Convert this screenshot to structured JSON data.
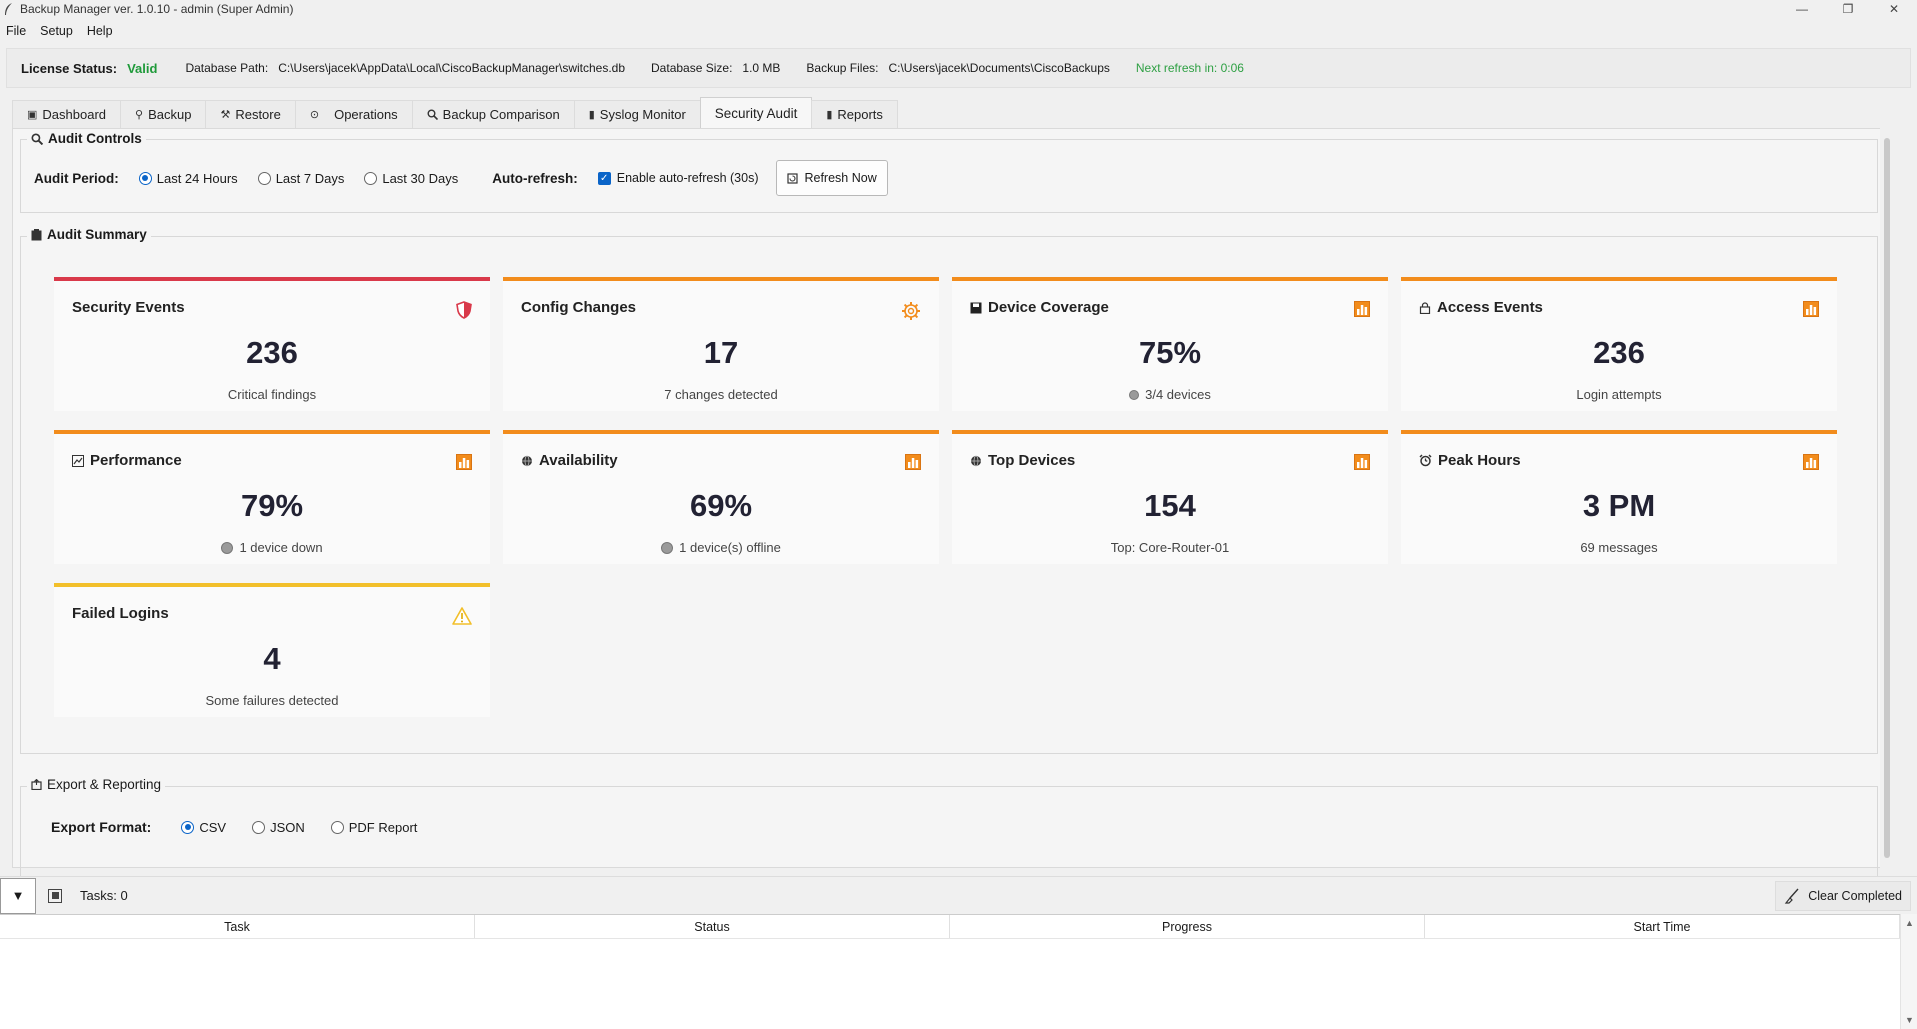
{
  "window": {
    "title": "Backup Manager ver. 1.0.10 - admin (Super Admin)",
    "controls": [
      "—",
      "❐",
      "✕"
    ]
  },
  "menu": [
    "File",
    "Setup",
    "Help"
  ],
  "status": {
    "license_label": "License Status:",
    "license_value": "Valid",
    "db_path_label": "Database Path:",
    "db_path_value": "C:\\Users\\jacek\\AppData\\Local\\CiscoBackupManager\\switches.db",
    "db_size_label": "Database Size:",
    "db_size_value": "1.0 MB",
    "backup_files_label": "Backup Files:",
    "backup_files_value": "C:\\Users\\jacek\\Documents\\CiscoBackups",
    "next_refresh": "Next refresh in: 0:06",
    "colors": {
      "valid": "#1f9a3a",
      "refresh": "#2ea043"
    }
  },
  "tabs": [
    {
      "label": "Dashboard",
      "icon": "dashboard-icon"
    },
    {
      "label": "Backup",
      "icon": "backup-icon"
    },
    {
      "label": "Restore",
      "icon": "restore-icon"
    },
    {
      "label": "Operations",
      "icon": "operations-icon"
    },
    {
      "label": "Backup Comparison",
      "icon": "search-icon"
    },
    {
      "label": "Syslog Monitor",
      "icon": "syslog-icon"
    },
    {
      "label": "Security Audit",
      "icon": "",
      "active": true
    },
    {
      "label": "Reports",
      "icon": "reports-icon"
    }
  ],
  "audit_controls": {
    "title": "Audit Controls",
    "period_label": "Audit Period:",
    "periods": [
      "Last 24 Hours",
      "Last 7 Days",
      "Last 30 Days"
    ],
    "selected_period": "Last 24 Hours",
    "auto_refresh_label": "Auto-refresh:",
    "auto_refresh_check": "Enable auto-refresh (30s)",
    "auto_refresh_checked": true,
    "refresh_button": "Refresh Now"
  },
  "audit_summary": {
    "title": "Audit Summary",
    "cards": [
      {
        "title": "Security Events",
        "value": "236",
        "subtitle": "Critical findings",
        "accent": "#d9394a",
        "icon": "shield-icon"
      },
      {
        "title": "Config Changes",
        "value": "17",
        "subtitle": "7 changes detected",
        "accent": "#f28c1c",
        "icon": "gear-icon"
      },
      {
        "title": "Device Coverage",
        "value": "75%",
        "subtitle": "3/4 devices",
        "accent": "#f28c1c",
        "icon": "bar-chart-icon"
      },
      {
        "title": "Access Events",
        "value": "236",
        "subtitle": "Login attempts",
        "accent": "#f28c1c",
        "icon": "bar-chart-icon"
      },
      {
        "title": "Performance",
        "value": "79%",
        "subtitle": "1 device down",
        "accent": "#f28c1c",
        "icon": "bar-chart-icon"
      },
      {
        "title": "Availability",
        "value": "69%",
        "subtitle": "1 device(s) offline",
        "accent": "#f28c1c",
        "icon": "bar-chart-icon"
      },
      {
        "title": "Top Devices",
        "value": "154",
        "subtitle": "Top: Core-Router-01",
        "accent": "#f28c1c",
        "icon": "bar-chart-icon"
      },
      {
        "title": "Peak Hours",
        "value": "3 PM",
        "subtitle": "69 messages",
        "accent": "#f28c1c",
        "icon": "bar-chart-icon"
      },
      {
        "title": "Failed Logins",
        "value": "4",
        "subtitle": "Some failures detected",
        "accent": "#f2bf2a",
        "icon": "warning-icon"
      }
    ]
  },
  "export": {
    "title": "Export & Reporting",
    "format_label": "Export Format:",
    "formats": [
      "CSV",
      "JSON",
      "PDF Report"
    ],
    "selected": "CSV"
  },
  "task_panel": {
    "collapse_glyph": "▼",
    "tasks_label": "Tasks: 0",
    "clear_button": "Clear Completed",
    "columns": [
      "Task",
      "Status",
      "Progress",
      "Start Time"
    ]
  }
}
